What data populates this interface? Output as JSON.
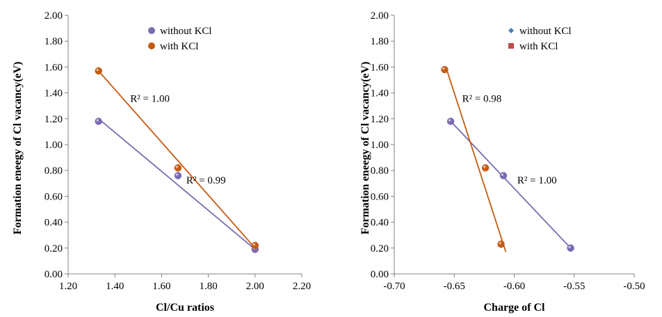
{
  "chart_data": [
    {
      "type": "scatter",
      "xlabel": "Cl/Cu ratios",
      "ylabel": "Formation eneegy of Cl vacancy(eV)",
      "xlim": [
        1.2,
        2.2
      ],
      "ylim": [
        0.0,
        2.0
      ],
      "x_ticks": [
        "1.20",
        "1.40",
        "1.60",
        "1.80",
        "2.00",
        "2.20"
      ],
      "y_ticks": [
        "0.00",
        "0.20",
        "0.40",
        "0.60",
        "0.80",
        "1.00",
        "1.20",
        "1.40",
        "1.60",
        "1.80",
        "2.00"
      ],
      "grid": false,
      "legend_position": "top-right",
      "series": [
        {
          "name": "without KCl",
          "color": "#7b6bb0",
          "marker": "circle",
          "x": [
            1.33,
            1.67,
            2.0
          ],
          "y": [
            1.18,
            0.76,
            0.19
          ],
          "trendline": {
            "x": [
              1.33,
              2.0
            ],
            "y": [
              1.2,
              0.19
            ]
          }
        },
        {
          "name": "with KCl",
          "color": "#c55a11",
          "marker": "circle",
          "x": [
            1.33,
            1.67,
            2.0
          ],
          "y": [
            1.57,
            0.82,
            0.22
          ],
          "trendline": {
            "x": [
              1.33,
              2.0
            ],
            "y": [
              1.57,
              0.2
            ]
          }
        }
      ],
      "annotations": [
        {
          "text": "R² = 1.00",
          "x": 1.55,
          "y": 1.33
        },
        {
          "text": "R² = 0.99",
          "x": 1.79,
          "y": 0.7
        }
      ]
    },
    {
      "type": "scatter",
      "xlabel": "Charge of Cl",
      "ylabel": "Formation eneegy of Cl vacancy(eV)",
      "xlim": [
        -0.7,
        -0.5
      ],
      "ylim": [
        0.0,
        2.0
      ],
      "x_ticks": [
        "-0.70",
        "-0.65",
        "-0.60",
        "-0.55",
        "-0.50"
      ],
      "y_ticks": [
        "0.00",
        "0.20",
        "0.40",
        "0.60",
        "0.80",
        "1.00",
        "1.20",
        "1.40",
        "1.60",
        "1.80",
        "2.00"
      ],
      "grid": false,
      "legend_position": "top-right",
      "legend": [
        {
          "name": "without KCl",
          "color": "#4a7ebb",
          "marker": "diamond"
        },
        {
          "name": "with KCl",
          "color": "#be4b48",
          "marker": "square"
        }
      ],
      "series": [
        {
          "name": "without KCl",
          "color": "#7b6bb0",
          "marker": "circle",
          "x": [
            -0.653,
            -0.609,
            -0.553
          ],
          "y": [
            1.18,
            0.76,
            0.2
          ],
          "trendline": {
            "x": [
              -0.655,
              -0.553
            ],
            "y": [
              1.2,
              0.2
            ]
          }
        },
        {
          "name": "with KCl",
          "color": "#c55a11",
          "marker": "circle",
          "x": [
            -0.658,
            -0.624,
            -0.611
          ],
          "y": [
            1.58,
            0.82,
            0.23
          ],
          "trendline": {
            "x": [
              -0.657,
              -0.607
            ],
            "y": [
              1.6,
              0.17
            ]
          }
        }
      ],
      "annotations": [
        {
          "text": "R² = 0.98",
          "x": -0.627,
          "y": 1.33
        },
        {
          "text": "R² = 1.00",
          "x": -0.581,
          "y": 0.7
        }
      ]
    }
  ]
}
